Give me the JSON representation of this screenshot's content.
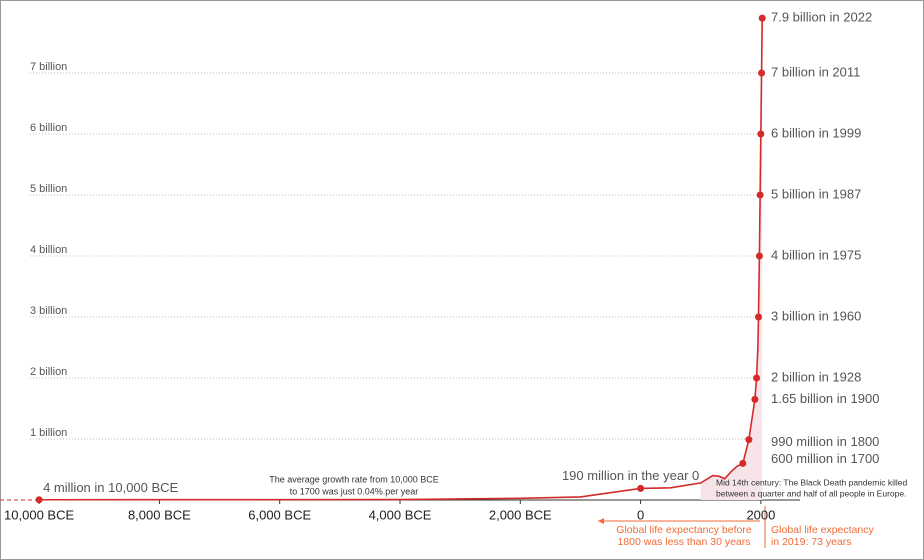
{
  "chart_data": {
    "type": "line",
    "x": [
      -10000,
      -8000,
      -6000,
      -4000,
      -2000,
      -1000,
      0,
      500,
      1000,
      1200,
      1300,
      1400,
      1500,
      1600,
      1700,
      1800,
      1900,
      1928,
      1950,
      1960,
      1975,
      1987,
      1999,
      2011,
      2022
    ],
    "series": [
      {
        "color": "#d42a2a",
        "values": [
          0.004,
          0.005,
          0.006,
          0.007,
          0.027,
          0.05,
          0.19,
          0.2,
          0.28,
          0.4,
          0.39,
          0.35,
          0.46,
          0.55,
          0.6,
          0.99,
          1.65,
          2,
          2.5,
          3,
          4,
          5,
          6,
          7,
          7.9
        ]
      }
    ],
    "markers": {
      "x": [
        -10000,
        0,
        1700,
        1800,
        1900,
        1928,
        1960,
        1975,
        1987,
        1999,
        2011,
        2022
      ],
      "values": [
        0.004,
        0.19,
        0.6,
        0.99,
        1.65,
        2,
        3,
        4,
        5,
        6,
        7,
        7.9
      ],
      "value_labels": [
        "4 million in 10,000 BCE",
        "190 million in the year 0",
        "600 million in 1700",
        "990 million in 1800",
        "1.65 billion in 1900",
        "2 billion in 1928",
        "3 billion in 1960",
        "4 billion in 1975",
        "5 billion in 1987",
        "6 billion in 1999",
        "7 billion in 2011",
        "7.9 billion in 2022"
      ]
    },
    "xlim": [
      -10650,
      2650
    ],
    "xticks": [
      {
        "value": -10000,
        "label": "10,000 BCE"
      },
      {
        "value": -8000,
        "label": "8,000 BCE"
      },
      {
        "value": -6000,
        "label": "6,000 BCE"
      },
      {
        "value": -4000,
        "label": "4,000 BCE"
      },
      {
        "value": -2000,
        "label": "2,000 BCE"
      },
      0,
      2000
    ],
    "ylim": [
      0,
      8
    ],
    "yticks": [
      {
        "value": 1,
        "label": "1 billion"
      },
      {
        "value": 2,
        "label": "2 billion"
      },
      {
        "value": 3,
        "label": "3 billion"
      },
      {
        "value": 4,
        "label": "4 billion"
      },
      {
        "value": 5,
        "label": "5 billion"
      },
      {
        "value": 6,
        "label": "6 billion"
      },
      {
        "value": 7,
        "label": "7 billion"
      }
    ],
    "grid": true,
    "annotations": {
      "growth": [
        "The average growth rate from 10,000 BCE",
        "to 1700 was just  0.04%.per year"
      ],
      "black_death": [
        "Mid 14th century: The Black Death pandemic killed",
        "between a quarter and half of all people in Europe."
      ],
      "life_before": [
        "Global life expectancy before",
        "1800 was less than 30 years"
      ],
      "life_2019": [
        "Global life expectancy",
        "in 2019: 73 years"
      ]
    }
  }
}
